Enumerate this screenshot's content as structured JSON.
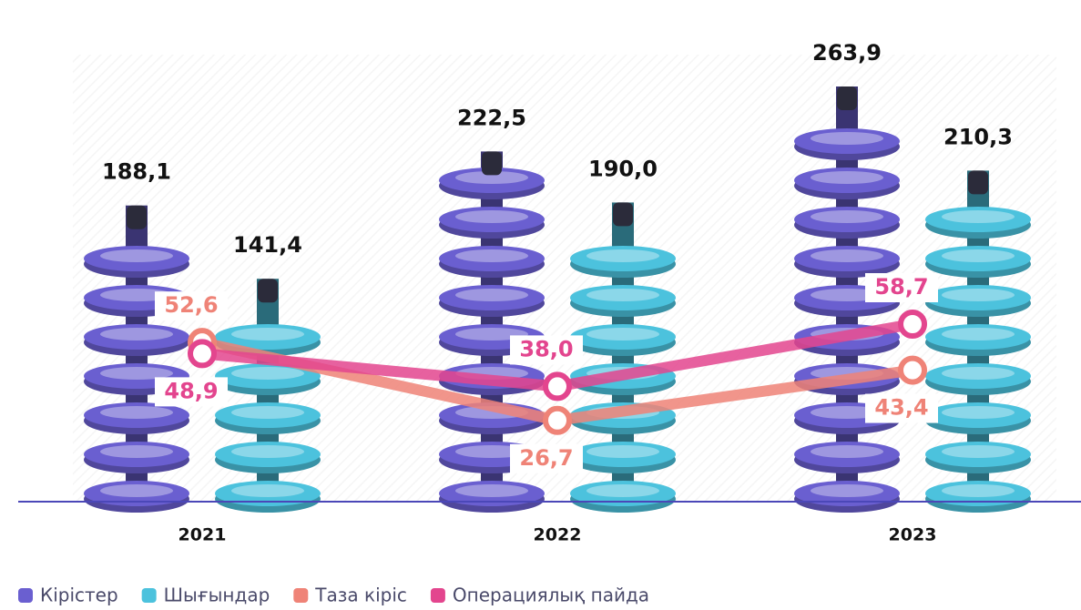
{
  "chart_data": {
    "type": "bar-line",
    "categories": [
      "2021",
      "2022",
      "2023"
    ],
    "series": [
      {
        "name": "Кірістер",
        "color": "#6a5fd0",
        "kind": "bar",
        "values": [
          188.1,
          222.5,
          263.9
        ],
        "value_labels": [
          "188,1",
          "222,5",
          "263,9"
        ]
      },
      {
        "name": "Шығындар",
        "color": "#4cc2dd",
        "kind": "bar",
        "values": [
          141.4,
          190.0,
          210.3
        ],
        "value_labels": [
          "141,4",
          "190,0",
          "210,3"
        ]
      },
      {
        "name": "Таза кіріс",
        "color": "#ef8377",
        "kind": "line",
        "values": [
          52.6,
          26.7,
          43.4
        ],
        "value_labels": [
          "52,6",
          "26,7",
          "43,4"
        ]
      },
      {
        "name": "Операциялық пайда",
        "color": "#e3458e",
        "kind": "line",
        "values": [
          48.9,
          38.0,
          58.7
        ],
        "value_labels": [
          "48,9",
          "38,0",
          "58,7"
        ]
      }
    ]
  }
}
